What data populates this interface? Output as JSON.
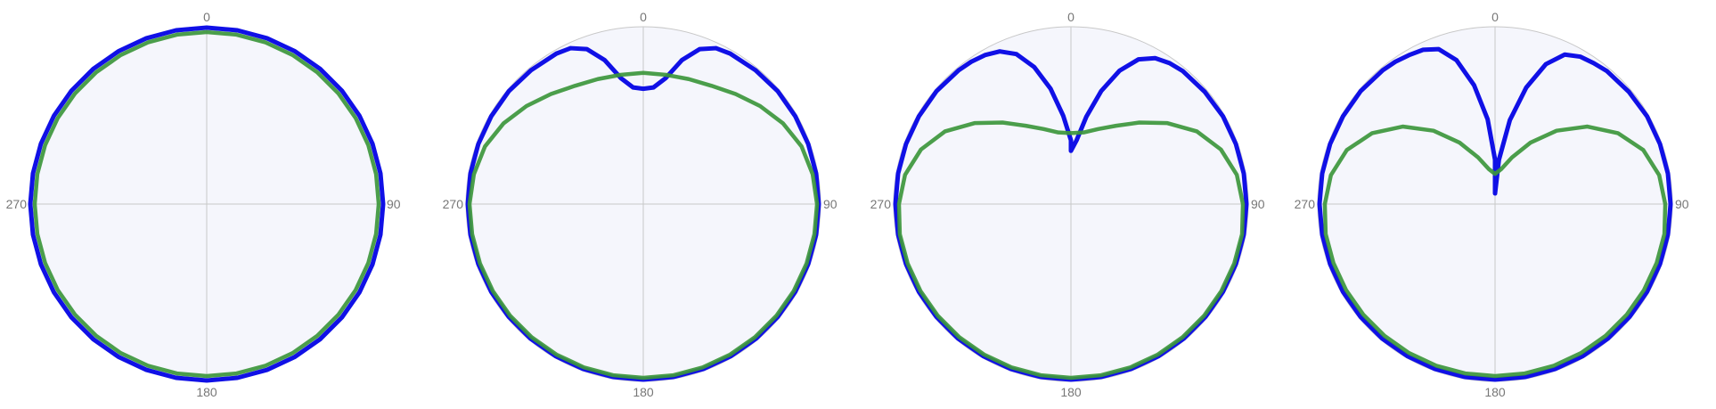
{
  "theme": {
    "background": "#ffffff",
    "plot_fill": "#f5f6fc",
    "grid_color": "#c8c8c8",
    "tick_color": "#777777"
  },
  "chart_data": [
    {
      "type": "polar-line",
      "angle_ticks": [
        "0",
        "90",
        "180",
        "270"
      ],
      "angle_direction": "clockwise",
      "angle_zero": "top",
      "rlim": [
        0,
        1
      ],
      "grid": true,
      "series": [
        {
          "color": "#1010e6",
          "theta": [
            0,
            10,
            20,
            30,
            40,
            50,
            60,
            70,
            80,
            90,
            100,
            110,
            120,
            130,
            140,
            150,
            160,
            170,
            180,
            190,
            200,
            210,
            220,
            230,
            240,
            250,
            260,
            270,
            280,
            290,
            300,
            310,
            320,
            330,
            340,
            350,
            360
          ],
          "r": [
            0.995,
            0.995,
            0.995,
            0.995,
            0.995,
            0.995,
            0.995,
            0.995,
            0.995,
            0.995,
            0.995,
            0.995,
            0.995,
            0.995,
            0.995,
            0.995,
            0.995,
            0.995,
            0.995,
            0.995,
            0.995,
            0.995,
            0.995,
            0.995,
            0.995,
            0.995,
            0.995,
            0.995,
            0.995,
            0.995,
            0.995,
            0.995,
            0.995,
            0.995,
            0.995,
            0.995,
            0.995
          ]
        },
        {
          "color": "#3c963c",
          "theta": [
            0,
            10,
            20,
            30,
            40,
            50,
            60,
            70,
            80,
            90,
            100,
            110,
            120,
            130,
            140,
            150,
            160,
            170,
            180,
            190,
            200,
            210,
            220,
            230,
            240,
            250,
            260,
            270,
            280,
            290,
            300,
            310,
            320,
            330,
            340,
            350,
            360
          ],
          "r": [
            0.97,
            0.97,
            0.97,
            0.97,
            0.97,
            0.97,
            0.97,
            0.97,
            0.97,
            0.97,
            0.97,
            0.97,
            0.97,
            0.97,
            0.97,
            0.97,
            0.97,
            0.97,
            0.97,
            0.97,
            0.97,
            0.97,
            0.97,
            0.97,
            0.97,
            0.97,
            0.97,
            0.97,
            0.97,
            0.97,
            0.97,
            0.97,
            0.97,
            0.97,
            0.97,
            0.97,
            0.97
          ]
        }
      ]
    },
    {
      "type": "polar-line",
      "angle_ticks": [
        "0",
        "90",
        "180",
        "270"
      ],
      "angle_direction": "clockwise",
      "angle_zero": "top",
      "rlim": [
        0,
        1
      ],
      "grid": true,
      "series": [
        {
          "color": "#1010e6",
          "theta": [
            0,
            5,
            10,
            15,
            20,
            25,
            30,
            40,
            50,
            60,
            70,
            80,
            90,
            100,
            110,
            120,
            130,
            140,
            150,
            160,
            170,
            180,
            190,
            200,
            210,
            220,
            230,
            240,
            250,
            260,
            270,
            280,
            290,
            300,
            310,
            320,
            330,
            335,
            340,
            345,
            350,
            355,
            360
          ],
          "r": [
            0.65,
            0.66,
            0.72,
            0.84,
            0.93,
            0.97,
            0.98,
            0.985,
            0.99,
            0.99,
            0.99,
            0.99,
            0.99,
            0.99,
            0.99,
            0.99,
            0.99,
            0.99,
            0.99,
            0.99,
            0.99,
            0.99,
            0.99,
            0.99,
            0.99,
            0.99,
            0.99,
            0.99,
            0.99,
            0.99,
            0.99,
            0.99,
            0.99,
            0.99,
            0.99,
            0.985,
            0.98,
            0.97,
            0.93,
            0.84,
            0.72,
            0.66,
            0.65
          ]
        },
        {
          "color": "#3c963c",
          "theta": [
            0,
            10,
            20,
            30,
            40,
            50,
            60,
            70,
            80,
            90,
            100,
            110,
            120,
            130,
            140,
            150,
            160,
            170,
            180,
            190,
            200,
            210,
            220,
            230,
            240,
            250,
            260,
            270,
            280,
            290,
            300,
            310,
            320,
            330,
            340,
            350,
            360
          ],
          "r": [
            0.74,
            0.74,
            0.75,
            0.77,
            0.81,
            0.86,
            0.91,
            0.95,
            0.97,
            0.98,
            0.98,
            0.98,
            0.98,
            0.98,
            0.98,
            0.98,
            0.98,
            0.98,
            0.98,
            0.98,
            0.98,
            0.98,
            0.98,
            0.98,
            0.98,
            0.98,
            0.98,
            0.98,
            0.97,
            0.95,
            0.91,
            0.86,
            0.81,
            0.77,
            0.75,
            0.74,
            0.74
          ]
        }
      ]
    },
    {
      "type": "polar-line",
      "angle_ticks": [
        "0",
        "90",
        "180",
        "270"
      ],
      "angle_direction": "clockwise",
      "angle_zero": "top",
      "rlim": [
        0,
        1
      ],
      "grid": true,
      "series": [
        {
          "color": "#1010e6",
          "theta": [
            0,
            5,
            10,
            15,
            20,
            25,
            30,
            35,
            40,
            50,
            60,
            70,
            80,
            90,
            100,
            110,
            120,
            130,
            140,
            150,
            160,
            170,
            180,
            190,
            200,
            210,
            220,
            230,
            240,
            250,
            260,
            270,
            280,
            290,
            300,
            310,
            320,
            325,
            330,
            335,
            340,
            345,
            350,
            355,
            360
          ],
          "r": [
            0.3,
            0.36,
            0.5,
            0.66,
            0.8,
            0.9,
            0.95,
            0.97,
            0.98,
            0.985,
            0.99,
            0.99,
            0.99,
            0.99,
            0.99,
            0.99,
            0.99,
            0.99,
            0.99,
            0.99,
            0.99,
            0.99,
            0.99,
            0.99,
            0.99,
            0.99,
            0.99,
            0.99,
            0.99,
            0.99,
            0.99,
            0.99,
            0.99,
            0.99,
            0.99,
            0.99,
            0.985,
            0.98,
            0.97,
            0.95,
            0.9,
            0.8,
            0.66,
            0.5,
            0.36,
            0.3
          ]
        },
        {
          "color": "#3c963c",
          "theta": [
            0,
            10,
            20,
            30,
            40,
            50,
            60,
            70,
            80,
            90,
            100,
            110,
            120,
            130,
            140,
            150,
            160,
            170,
            180,
            190,
            200,
            210,
            220,
            230,
            240,
            250,
            260,
            270,
            280,
            290,
            300,
            310,
            320,
            330,
            340,
            350,
            360
          ],
          "r": [
            0.4,
            0.41,
            0.45,
            0.51,
            0.6,
            0.71,
            0.82,
            0.9,
            0.95,
            0.97,
            0.98,
            0.98,
            0.98,
            0.98,
            0.98,
            0.98,
            0.98,
            0.98,
            0.98,
            0.98,
            0.98,
            0.98,
            0.98,
            0.98,
            0.98,
            0.98,
            0.98,
            0.97,
            0.95,
            0.9,
            0.82,
            0.71,
            0.6,
            0.51,
            0.45,
            0.41,
            0.4
          ]
        }
      ]
    },
    {
      "type": "polar-line",
      "angle_ticks": [
        "0",
        "90",
        "180",
        "270"
      ],
      "angle_direction": "clockwise",
      "angle_zero": "top",
      "rlim": [
        0,
        1
      ],
      "grid": true,
      "series": [
        {
          "color": "#1010e6",
          "theta": [
            0,
            5,
            10,
            15,
            20,
            25,
            30,
            35,
            40,
            50,
            60,
            70,
            80,
            90,
            100,
            110,
            120,
            130,
            140,
            150,
            160,
            170,
            180,
            190,
            200,
            210,
            220,
            230,
            240,
            250,
            260,
            270,
            280,
            290,
            300,
            310,
            320,
            325,
            330,
            335,
            340,
            345,
            350,
            355,
            360
          ],
          "r": [
            0.06,
            0.25,
            0.48,
            0.68,
            0.84,
            0.93,
            0.96,
            0.97,
            0.98,
            0.985,
            0.99,
            0.99,
            0.99,
            0.99,
            0.99,
            0.99,
            0.99,
            0.99,
            0.99,
            0.99,
            0.99,
            0.99,
            0.99,
            0.99,
            0.99,
            0.99,
            0.99,
            0.99,
            0.99,
            0.99,
            0.99,
            0.99,
            0.99,
            0.99,
            0.99,
            0.99,
            0.985,
            0.98,
            0.97,
            0.96,
            0.93,
            0.84,
            0.68,
            0.48,
            0.25,
            0.06
          ]
        },
        {
          "color": "#3c963c",
          "theta": [
            0,
            10,
            20,
            30,
            40,
            50,
            60,
            70,
            80,
            90,
            100,
            110,
            120,
            130,
            140,
            150,
            160,
            170,
            180,
            190,
            200,
            210,
            220,
            230,
            240,
            250,
            260,
            270,
            280,
            290,
            300,
            310,
            320,
            330,
            340,
            350,
            360
          ],
          "r": [
            0.17,
            0.2,
            0.28,
            0.4,
            0.54,
            0.68,
            0.8,
            0.89,
            0.94,
            0.96,
            0.97,
            0.97,
            0.97,
            0.97,
            0.97,
            0.97,
            0.97,
            0.97,
            0.97,
            0.97,
            0.97,
            0.97,
            0.97,
            0.97,
            0.97,
            0.97,
            0.97,
            0.96,
            0.94,
            0.89,
            0.8,
            0.68,
            0.54,
            0.4,
            0.28,
            0.2,
            0.17
          ]
        }
      ]
    }
  ]
}
